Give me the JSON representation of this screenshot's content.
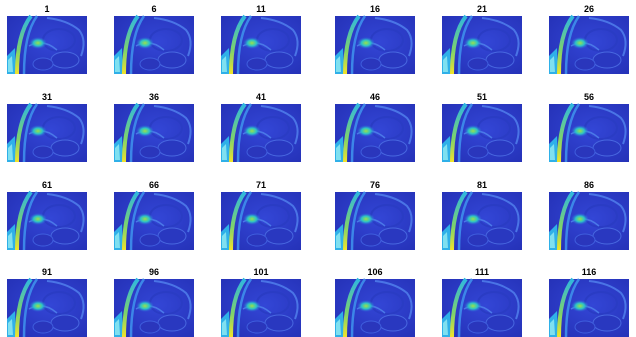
{
  "panels": [
    {
      "title": "1"
    },
    {
      "title": "6"
    },
    {
      "title": "11"
    },
    {
      "title": "16"
    },
    {
      "title": "21"
    },
    {
      "title": "26"
    },
    {
      "title": "31"
    },
    {
      "title": "36"
    },
    {
      "title": "41"
    },
    {
      "title": "46"
    },
    {
      "title": "51"
    },
    {
      "title": "56"
    },
    {
      "title": "61"
    },
    {
      "title": "66"
    },
    {
      "title": "71"
    },
    {
      "title": "76"
    },
    {
      "title": "81"
    },
    {
      "title": "86"
    },
    {
      "title": "91"
    },
    {
      "title": "96"
    },
    {
      "title": "101"
    },
    {
      "title": "106"
    },
    {
      "title": "111"
    },
    {
      "title": "116"
    }
  ]
}
